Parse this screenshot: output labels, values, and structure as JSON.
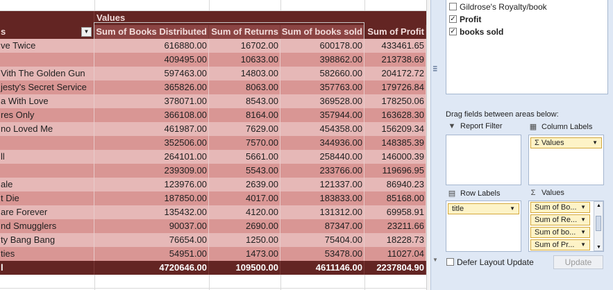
{
  "pivot": {
    "values_header": "Values",
    "row_label_header": "s",
    "columns": [
      "Sum of Books Distributed",
      "Sum of Returns",
      "Sum of books sold",
      "Sum of Profit"
    ],
    "rows": [
      {
        "title": "ve Twice",
        "distributed": "616880.00",
        "returns": "16702.00",
        "sold": "600178.00",
        "profit": "433461.65"
      },
      {
        "title": "",
        "distributed": "409495.00",
        "returns": "10633.00",
        "sold": "398862.00",
        "profit": "213738.69"
      },
      {
        "title": "Vith The Golden Gun",
        "distributed": "597463.00",
        "returns": "14803.00",
        "sold": "582660.00",
        "profit": "204172.72"
      },
      {
        "title": "jesty's Secret Service",
        "distributed": "365826.00",
        "returns": "8063.00",
        "sold": "357763.00",
        "profit": "179726.84"
      },
      {
        "title": "a With Love",
        "distributed": "378071.00",
        "returns": "8543.00",
        "sold": "369528.00",
        "profit": "178250.06"
      },
      {
        "title": "res Only",
        "distributed": "366108.00",
        "returns": "8164.00",
        "sold": "357944.00",
        "profit": "163628.30"
      },
      {
        "title": "no Loved Me",
        "distributed": "461987.00",
        "returns": "7629.00",
        "sold": "454358.00",
        "profit": "156209.34"
      },
      {
        "title": "",
        "distributed": "352506.00",
        "returns": "7570.00",
        "sold": "344936.00",
        "profit": "148385.39"
      },
      {
        "title": "ll",
        "distributed": "264101.00",
        "returns": "5661.00",
        "sold": "258440.00",
        "profit": "146000.39"
      },
      {
        "title": "",
        "distributed": "239309.00",
        "returns": "5543.00",
        "sold": "233766.00",
        "profit": "119696.95"
      },
      {
        "title": "ale",
        "distributed": "123976.00",
        "returns": "2639.00",
        "sold": "121337.00",
        "profit": "86940.23"
      },
      {
        "title": "t Die",
        "distributed": "187850.00",
        "returns": "4017.00",
        "sold": "183833.00",
        "profit": "85168.00"
      },
      {
        "title": "are Forever",
        "distributed": "135432.00",
        "returns": "4120.00",
        "sold": "131312.00",
        "profit": "69958.91"
      },
      {
        "title": "nd Smugglers",
        "distributed": "90037.00",
        "returns": "2690.00",
        "sold": "87347.00",
        "profit": "23211.66"
      },
      {
        "title": "ty Bang Bang",
        "distributed": "76654.00",
        "returns": "1250.00",
        "sold": "75404.00",
        "profit": "18228.73"
      },
      {
        "title": "ties",
        "distributed": "54951.00",
        "returns": "1473.00",
        "sold": "53478.00",
        "profit": "11027.04"
      }
    ],
    "total": {
      "title": "l",
      "distributed": "4720646.00",
      "returns": "109500.00",
      "sold": "4611146.00",
      "profit": "2237804.90"
    }
  },
  "field_list": {
    "fields": [
      {
        "label": "Gildrose's Royalty/book",
        "checked": false,
        "bold": false
      },
      {
        "label": "Profit",
        "checked": true,
        "bold": true
      },
      {
        "label": "books sold",
        "checked": true,
        "bold": true
      }
    ],
    "drag_label": "Drag fields between areas below:",
    "report_filter": {
      "label": "Report Filter",
      "icon": "filter-icon"
    },
    "column_labels": {
      "label": "Column Labels",
      "icon": "table-grid-icon",
      "chips": [
        "Values"
      ]
    },
    "row_labels": {
      "label": "Row Labels",
      "icon": "table-rows-icon",
      "chips": [
        "title"
      ]
    },
    "values": {
      "label": "Values",
      "icon": "sigma-icon",
      "chips": [
        "Sum of Bo...",
        "Sum of Re...",
        "Sum of bo...",
        "Sum of Pr..."
      ]
    },
    "defer_label": "Defer Layout Update",
    "defer_checked": false,
    "update_label": "Update"
  },
  "colors": {
    "header_dark": "#632523",
    "row_light": "#e6b8b7",
    "row_dark": "#d99694",
    "panel_bg": "#dfe8f5",
    "chip_bg": "#fdf3c7"
  }
}
